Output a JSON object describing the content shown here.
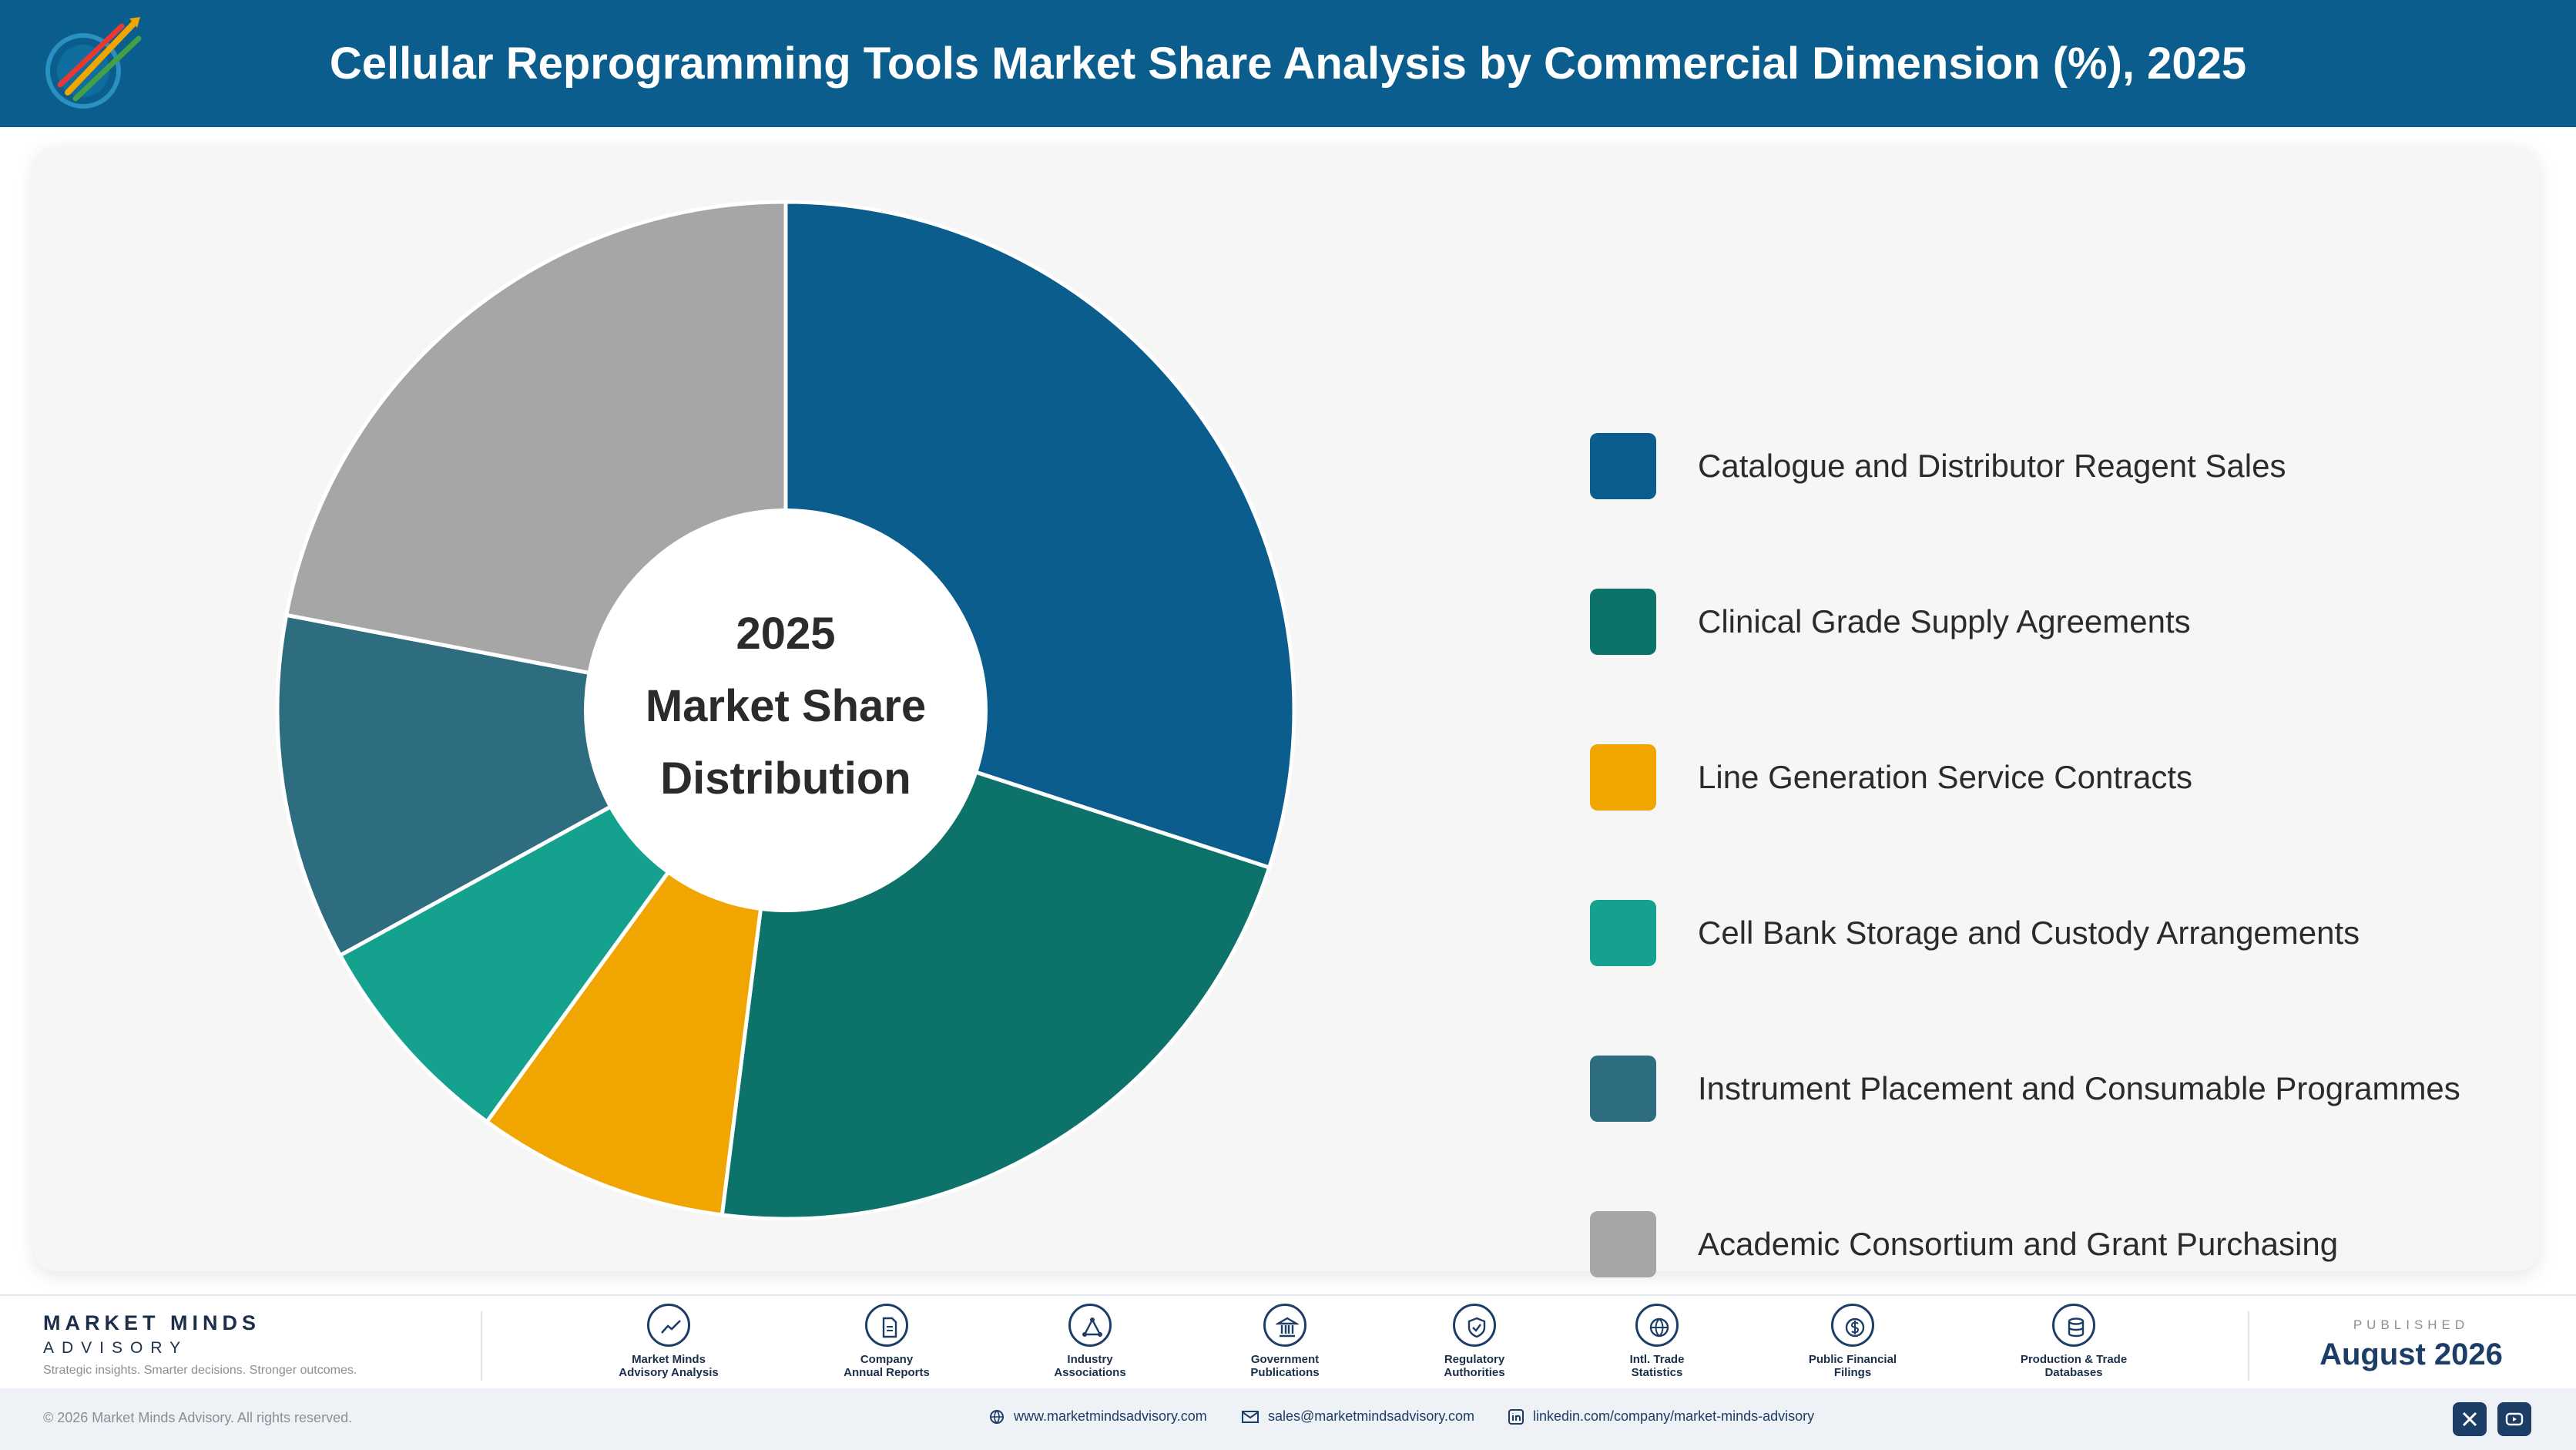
{
  "header": {
    "title": "Cellular Reprogramming Tools Market Share Analysis by Commercial Dimension (%), 2025"
  },
  "chart_data": {
    "type": "pie",
    "center_label": [
      "2025",
      "Market Share",
      "Distribution"
    ],
    "series": [
      {
        "name": "Catalogue and Distributor Reagent Sales",
        "value": 30,
        "color": "#0a5d8c"
      },
      {
        "name": "Clinical Grade Supply Agreements",
        "value": 22,
        "color": "#0d726a"
      },
      {
        "name": "Line Generation Service Contracts",
        "value": 8,
        "color": "#f0a500"
      },
      {
        "name": "Cell Bank Storage and Custody Arrangements",
        "value": 7,
        "color": "#14a28f"
      },
      {
        "name": "Instrument Placement and Consumable Programmes",
        "value": 11,
        "color": "#2e6c80"
      },
      {
        "name": "Academic Consortium and Grant Purchasing",
        "value": 22,
        "color": "#a6a6a6"
      }
    ]
  },
  "footer": {
    "brand_name": "MARKET MINDS",
    "brand_sub": "ADVISORY",
    "brand_tagline": "Strategic insights. Smarter decisions. Stronger outcomes.",
    "sources": [
      {
        "line1": "Market Minds",
        "line2": "Advisory Analysis",
        "icon": "trend-icon"
      },
      {
        "line1": "Company",
        "line2": "Annual Reports",
        "icon": "document-icon"
      },
      {
        "line1": "Industry",
        "line2": "Associations",
        "icon": "network-icon"
      },
      {
        "line1": "Government",
        "line2": "Publications",
        "icon": "building-icon"
      },
      {
        "line1": "Regulatory",
        "line2": "Authorities",
        "icon": "shield-icon"
      },
      {
        "line1": "Intl. Trade",
        "line2": "Statistics",
        "icon": "globe-icon"
      },
      {
        "line1": "Public Financial",
        "line2": "Filings",
        "icon": "coin-icon"
      },
      {
        "line1": "Production & Trade",
        "line2": "Databases",
        "icon": "database-icon"
      }
    ],
    "published_label": "PUBLISHED",
    "published_date": "August 2026"
  },
  "bottom_bar": {
    "copyright": "© 2026 Market Minds Advisory. All rights reserved.",
    "website": "www.marketmindsadvisory.com",
    "email": "sales@marketmindsadvisory.com",
    "linkedin": "linkedin.com/company/market-minds-advisory"
  }
}
